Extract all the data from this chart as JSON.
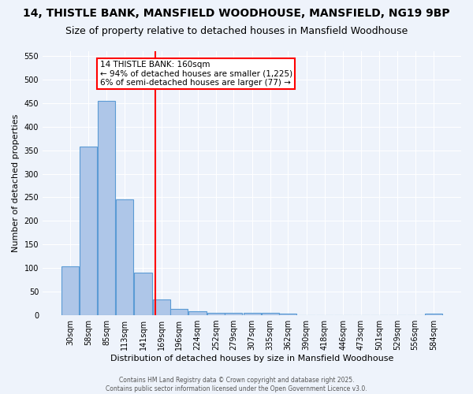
{
  "title": "14, THISTLE BANK, MANSFIELD WOODHOUSE, MANSFIELD, NG19 9BP",
  "subtitle": "Size of property relative to detached houses in Mansfield Woodhouse",
  "xlabel": "Distribution of detached houses by size in Mansfield Woodhouse",
  "ylabel": "Number of detached properties",
  "bar_labels": [
    "30sqm",
    "58sqm",
    "85sqm",
    "113sqm",
    "141sqm",
    "169sqm",
    "196sqm",
    "224sqm",
    "252sqm",
    "279sqm",
    "307sqm",
    "335sqm",
    "362sqm",
    "390sqm",
    "418sqm",
    "446sqm",
    "473sqm",
    "501sqm",
    "529sqm",
    "556sqm",
    "584sqm"
  ],
  "bar_values": [
    103,
    357,
    455,
    246,
    90,
    33,
    13,
    9,
    5,
    5,
    5,
    5,
    4,
    0,
    0,
    0,
    0,
    0,
    0,
    0,
    4
  ],
  "bar_color": "#aec6e8",
  "bar_edge_color": "#5b9bd5",
  "annotation_text": "14 THISTLE BANK: 160sqm\n← 94% of detached houses are smaller (1,225)\n6% of semi-detached houses are larger (77) →",
  "red_line_x": 160,
  "ylim": [
    0,
    560
  ],
  "yticks": [
    0,
    50,
    100,
    150,
    200,
    250,
    300,
    350,
    400,
    450,
    500,
    550
  ],
  "footer_line1": "Contains HM Land Registry data © Crown copyright and database right 2025.",
  "footer_line2": "Contains public sector information licensed under the Open Government Licence v3.0.",
  "bg_color": "#eef3fb",
  "grid_color": "#ffffff",
  "title_fontsize": 10,
  "subtitle_fontsize": 9,
  "label_fontsize": 8,
  "tick_fontsize": 7,
  "ylabel_fontsize": 8,
  "footer_fontsize": 5.5
}
